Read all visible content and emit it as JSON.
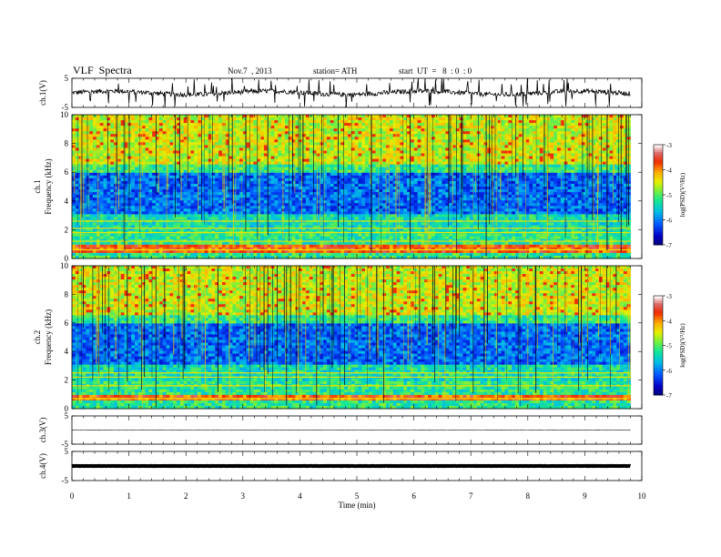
{
  "header": {
    "title": "VLF  Spectra",
    "date": "Nov.7  , 2013",
    "station": "station= ATH",
    "start": "start  UT  =   8  : 0  : 0"
  },
  "chart_data": {
    "type": "heatmap",
    "x_range": [
      0,
      10
    ],
    "x_ticks": [
      "0",
      "1",
      "2",
      "3",
      "4",
      "5",
      "6",
      "7",
      "8",
      "9",
      "10"
    ],
    "xlabel": "Time  (min)",
    "data_end_min": 9.8,
    "panels": [
      {
        "kind": "waveform",
        "ylabel": "ch.1(V)",
        "ylim": [
          -5,
          5
        ],
        "y_ticks": [
          "5",
          "-5"
        ],
        "baseline": 0,
        "noise": "dense spiky trace with occasional spikes to ±5"
      },
      {
        "kind": "spectrogram",
        "ylabel_top": "ch.1",
        "ylabel": "Frequency  (kHz)",
        "ylim": [
          0,
          10
        ],
        "y_ticks": [
          "0",
          "2",
          "4",
          "6",
          "8",
          "10"
        ],
        "colorbar": {
          "label": "log(PSD)(V²/Hz)",
          "range": [
            -7,
            -3
          ],
          "ticks": [
            "-3",
            "-4",
            "-5",
            "-6",
            "-7"
          ]
        },
        "features": {
          "low_band_khz": [
            0.3,
            0.9
          ],
          "blue_band_khz": [
            3.0,
            6.0
          ],
          "high_noise_khz": [
            6.5,
            10.0
          ],
          "harmonic_lines_khz": [
            0.6,
            1.2,
            1.8,
            2.1,
            2.6
          ]
        }
      },
      {
        "kind": "spectrogram",
        "ylabel_top": "ch.2",
        "ylabel": "Frequency  (kHz)",
        "ylim": [
          0,
          10
        ],
        "y_ticks": [
          "0",
          "2",
          "4",
          "6",
          "8",
          "10"
        ],
        "colorbar": {
          "label": "log(PSD)(V²/Hz)",
          "range": [
            -7,
            -3
          ],
          "ticks": [
            "-3",
            "-4",
            "-5",
            "-6",
            "-7"
          ]
        },
        "features": {
          "low_band_khz": [
            0.6,
            1.0
          ],
          "blue_band_khz": [
            3.0,
            6.0
          ],
          "high_noise_khz": [
            6.5,
            10.0
          ],
          "harmonic_lines_khz": [
            0.7,
            1.6,
            2.2,
            2.5
          ]
        }
      },
      {
        "kind": "waveform",
        "ylabel": "ch.3(V)",
        "ylim": [
          -5,
          5
        ],
        "y_ticks": [
          "5",
          "-5"
        ],
        "baseline": 0,
        "noise": "nearly flat line"
      },
      {
        "kind": "waveform",
        "ylabel": "ch.4(V)",
        "ylim": [
          -5,
          5
        ],
        "y_ticks": [
          "5",
          "-5"
        ],
        "baseline": 0,
        "noise": "thick flat line"
      }
    ]
  }
}
